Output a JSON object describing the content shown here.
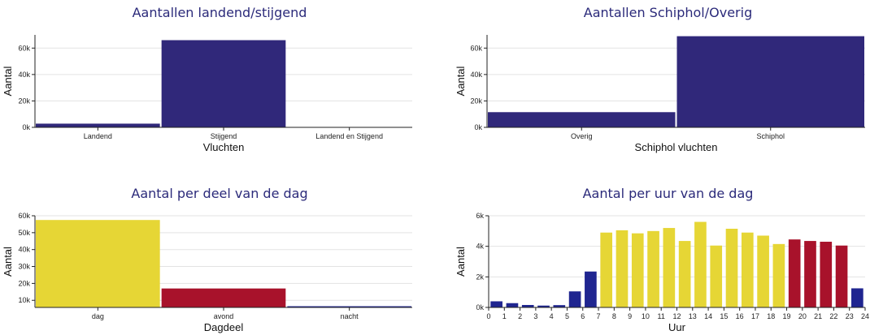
{
  "chart_data": [
    {
      "type": "bar",
      "title": "Aantallen landend/stijgend",
      "xlabel": "Vluchten",
      "ylabel": "Aantal",
      "categories": [
        "Landend",
        "Stijgend",
        "Landend en Stijgend"
      ],
      "values": [
        2800,
        66000,
        0
      ],
      "colors": [
        "#30287a",
        "#30287a",
        "#30287a"
      ],
      "ylim": [
        0,
        70000
      ],
      "yticks": [
        0,
        20000,
        40000,
        60000
      ],
      "ytick_labels": [
        "0k",
        "20k",
        "40k",
        "60k"
      ],
      "grid": true
    },
    {
      "type": "bar",
      "title": "Aantallen Schiphol/Overig",
      "xlabel": "Schiphol vluchten",
      "ylabel": "Aantal",
      "categories": [
        "Overig",
        "Schiphol"
      ],
      "values": [
        11500,
        69000
      ],
      "colors": [
        "#30287a",
        "#30287a"
      ],
      "ylim": [
        0,
        70000
      ],
      "yticks": [
        0,
        20000,
        40000,
        60000
      ],
      "ytick_labels": [
        "0k",
        "20k",
        "40k",
        "60k"
      ],
      "grid": true
    },
    {
      "type": "bar",
      "title": "Aantal per deel van de dag",
      "xlabel": "Dagdeel",
      "ylabel": "Aantal",
      "categories": [
        "dag",
        "avond",
        "nacht"
      ],
      "values": [
        57500,
        17000,
        6500
      ],
      "colors": [
        "#e6d635",
        "#a8122b",
        "#1f2590"
      ],
      "ylim": [
        5800,
        60000
      ],
      "yticks": [
        10000,
        20000,
        30000,
        40000,
        50000,
        60000
      ],
      "ytick_labels": [
        "10k",
        "20k",
        "30k",
        "40k",
        "50k",
        "60k"
      ],
      "grid": true
    },
    {
      "type": "bar",
      "title": "Aantal per uur van de dag",
      "xlabel": "Uur",
      "ylabel": "Aantal",
      "x": [
        0,
        1,
        2,
        3,
        4,
        5,
        6,
        7,
        8,
        9,
        10,
        11,
        12,
        13,
        14,
        15,
        16,
        17,
        18,
        19,
        20,
        21,
        22,
        23
      ],
      "values": [
        400,
        280,
        160,
        120,
        150,
        1050,
        2350,
        4900,
        5050,
        4850,
        5000,
        5200,
        4350,
        5600,
        4050,
        5150,
        4900,
        4700,
        4150,
        4450,
        4350,
        4300,
        4050,
        1250
      ],
      "colors": [
        "#1f2590",
        "#1f2590",
        "#1f2590",
        "#1f2590",
        "#1f2590",
        "#1f2590",
        "#1f2590",
        "#e6d635",
        "#e6d635",
        "#e6d635",
        "#e6d635",
        "#e6d635",
        "#e6d635",
        "#e6d635",
        "#e6d635",
        "#e6d635",
        "#e6d635",
        "#e6d635",
        "#e6d635",
        "#a8122b",
        "#a8122b",
        "#a8122b",
        "#a8122b",
        "#1f2590"
      ],
      "xlim": [
        0,
        24
      ],
      "xticks": [
        0,
        1,
        2,
        3,
        4,
        5,
        6,
        7,
        8,
        9,
        10,
        11,
        12,
        13,
        14,
        15,
        16,
        17,
        18,
        19,
        20,
        21,
        22,
        23,
        24
      ],
      "ylim": [
        0,
        6000
      ],
      "yticks": [
        0,
        2000,
        4000,
        6000
      ],
      "ytick_labels": [
        "0k",
        "2k",
        "4k",
        "6k"
      ],
      "grid": true
    }
  ]
}
